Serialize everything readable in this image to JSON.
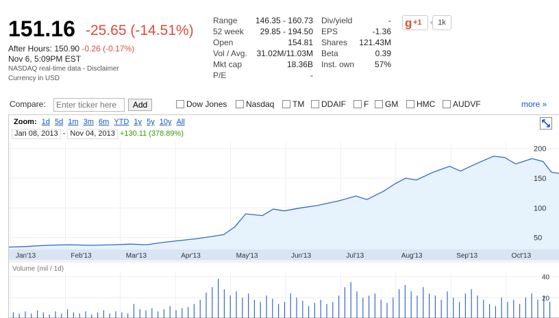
{
  "quote": {
    "price": "151.16",
    "change": "-25.65 (-14.51%)",
    "after_hours_label": "After Hours:",
    "after_hours_price": "150.90",
    "after_hours_change": "-0.26 (-0.17%)",
    "timestamp": "Nov 6, 5:09PM EST",
    "disclaimer": "NASDAQ real-time data - Disclaimer",
    "currency": "Currency in USD"
  },
  "stats_left": [
    {
      "label": "Range",
      "value": "146.35 - 160.73"
    },
    {
      "label": "52 week",
      "value": "29.85 - 194.50"
    },
    {
      "label": "Open",
      "value": "154.81"
    },
    {
      "label": "Vol / Avg.",
      "value": "31.02M/11.03M"
    },
    {
      "label": "Mkt cap",
      "value": "18.36B"
    },
    {
      "label": "P/E",
      "value": "-"
    }
  ],
  "stats_right": [
    {
      "label": "Div/yield",
      "value": "-"
    },
    {
      "label": "EPS",
      "value": "-1.36"
    },
    {
      "label": "Shares",
      "value": "121.43M"
    },
    {
      "label": "Beta",
      "value": "0.39"
    },
    {
      "label": "Inst. own",
      "value": "57%"
    }
  ],
  "social": {
    "plus_one": "+1",
    "g_letter": "g",
    "count": "1k"
  },
  "compare": {
    "label": "Compare:",
    "placeholder": "Enter ticker here",
    "add_label": "Add",
    "tickers": [
      "Dow Jones",
      "Nasdaq",
      "TM",
      "DDAIF",
      "F",
      "GM",
      "HMC",
      "AUDVF"
    ],
    "more_label": "more »"
  },
  "chart": {
    "zoom_label": "Zoom:",
    "zoom_options": [
      "1d",
      "5d",
      "1m",
      "3m",
      "6m",
      "YTD",
      "1y",
      "5y",
      "10y",
      "All"
    ],
    "start_date": "Jan 08, 2013",
    "end_date": "Nov 04, 2013",
    "date_sep": "-",
    "gain": "+130.11 (378.89%)",
    "volume_label": "Volume (mil / 1d)",
    "accent_color": "#3366cc",
    "fill_color": "#e6f2fc"
  },
  "chart_data": {
    "type": "area",
    "x_tick_labels": [
      "Jan'13",
      "Feb'13",
      "Mar'13",
      "Apr'13",
      "May'13",
      "Jun'13",
      "Jul'13",
      "Aug'13",
      "Sep'13",
      "Oct'13"
    ],
    "y_ticks": [
      50,
      100,
      150,
      200
    ],
    "ylim": [
      30,
      210
    ],
    "price_series": [
      {
        "x": 0,
        "y": 34
      },
      {
        "x": 0.03,
        "y": 35
      },
      {
        "x": 0.07,
        "y": 37
      },
      {
        "x": 0.11,
        "y": 38
      },
      {
        "x": 0.15,
        "y": 37
      },
      {
        "x": 0.19,
        "y": 38
      },
      {
        "x": 0.22,
        "y": 39
      },
      {
        "x": 0.25,
        "y": 38
      },
      {
        "x": 0.28,
        "y": 42
      },
      {
        "x": 0.31,
        "y": 45
      },
      {
        "x": 0.34,
        "y": 48
      },
      {
        "x": 0.37,
        "y": 52
      },
      {
        "x": 0.39,
        "y": 55
      },
      {
        "x": 0.41,
        "y": 68
      },
      {
        "x": 0.43,
        "y": 90
      },
      {
        "x": 0.46,
        "y": 87
      },
      {
        "x": 0.48,
        "y": 98
      },
      {
        "x": 0.5,
        "y": 95
      },
      {
        "x": 0.53,
        "y": 100
      },
      {
        "x": 0.56,
        "y": 104
      },
      {
        "x": 0.6,
        "y": 112
      },
      {
        "x": 0.63,
        "y": 120
      },
      {
        "x": 0.65,
        "y": 114
      },
      {
        "x": 0.68,
        "y": 128
      },
      {
        "x": 0.7,
        "y": 140
      },
      {
        "x": 0.72,
        "y": 150
      },
      {
        "x": 0.74,
        "y": 147
      },
      {
        "x": 0.77,
        "y": 160
      },
      {
        "x": 0.8,
        "y": 170
      },
      {
        "x": 0.82,
        "y": 162
      },
      {
        "x": 0.85,
        "y": 175
      },
      {
        "x": 0.88,
        "y": 187
      },
      {
        "x": 0.9,
        "y": 185
      },
      {
        "x": 0.92,
        "y": 174
      },
      {
        "x": 0.95,
        "y": 183
      },
      {
        "x": 0.97,
        "y": 178
      },
      {
        "x": 0.985,
        "y": 160
      },
      {
        "x": 1,
        "y": 158
      }
    ],
    "volume_ticks": [
      20,
      40
    ],
    "volume_ylim": [
      0,
      45
    ],
    "volume": [
      6,
      5,
      7,
      5,
      8,
      6,
      4,
      7,
      5,
      9,
      6,
      5,
      7,
      4,
      6,
      8,
      5,
      7,
      6,
      5,
      14,
      9,
      8,
      10,
      7,
      9,
      12,
      8,
      10,
      11,
      14,
      18,
      25,
      30,
      38,
      28,
      22,
      26,
      20,
      24,
      18,
      16,
      22,
      19,
      14,
      16,
      24,
      20,
      17,
      12,
      15,
      18,
      14,
      16,
      22,
      30,
      35,
      26,
      20,
      22,
      24,
      18,
      15,
      20,
      28,
      32,
      26,
      22,
      30,
      24,
      22,
      18,
      26,
      20,
      16,
      24,
      28,
      22,
      18,
      14,
      12,
      20,
      16,
      18,
      14,
      20,
      24,
      18,
      22,
      16
    ]
  }
}
